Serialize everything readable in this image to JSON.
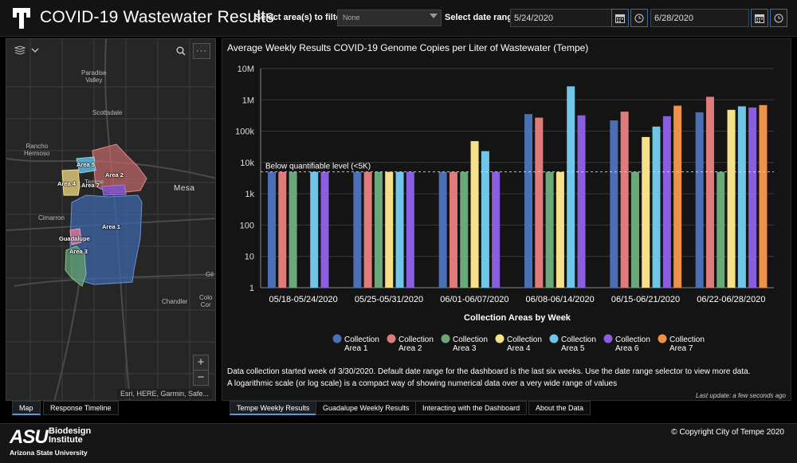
{
  "header": {
    "title": "COVID-19 Wastewater Results",
    "filter_label": "Select area(s) to filter",
    "area_select_value": "None",
    "date_label": "Select date range",
    "start_date": "5/24/2020",
    "end_date": "6/28/2020"
  },
  "map": {
    "places": {
      "paradise_valley": "Paradise\nValley",
      "scottsdale": "Scottsdale",
      "rancho_hermoso": "Rancho\nHermoso",
      "tempe": "Tempe",
      "mesa": "Mesa",
      "cimarron": "Cimarron",
      "gil": "Gil",
      "chandler": "Chandler",
      "colo": "Colo\nCor"
    },
    "areas": {
      "area1": "Area 1",
      "area2": "Area 2",
      "area3": "Area 3",
      "area4": "Area 4",
      "area5": "Area 5",
      "area7": "Area 7",
      "guadalupe": "Guadalupe"
    },
    "attribution": "Esri, HERE, Garmin, Safe...",
    "zoom_in": "+",
    "zoom_out": "−"
  },
  "chart_title": "Average Weekly Results COVID-19 Genome Copies per Liter of Wastewater (Tempe)",
  "chart_data": {
    "type": "bar",
    "y_scale": "log",
    "ylim": [
      1,
      10000000
    ],
    "yticks": [
      "1",
      "10",
      "100",
      "1k",
      "10k",
      "100k",
      "1M",
      "10M"
    ],
    "categories": [
      "05/18-05/24/2020",
      "05/25-05/31/2020",
      "06/01-06/07/2020",
      "06/08-06/14/2020",
      "06/15-06/21/2020",
      "06/22-06/28/2020"
    ],
    "xlabel": "Collection Areas by Week",
    "threshold": {
      "value": 5000,
      "label": "Below quantifiable level (<5K)"
    },
    "series": [
      {
        "name": "Collection Area 1",
        "color": "#4a6fb5",
        "values": [
          5000,
          5000,
          5000,
          350000,
          220000,
          400000
        ]
      },
      {
        "name": "Collection Area 2",
        "color": "#e07b7b",
        "values": [
          5000,
          5000,
          5000,
          270000,
          420000,
          1250000
        ]
      },
      {
        "name": "Collection Area 3",
        "color": "#6aa87a",
        "values": [
          5000,
          5000,
          5000,
          5000,
          5000,
          5000
        ]
      },
      {
        "name": "Collection Area 4",
        "color": "#f7e08a",
        "values": [
          null,
          5000,
          48000,
          5000,
          65000,
          480000
        ]
      },
      {
        "name": "Collection Area 5",
        "color": "#6fc6e8",
        "values": [
          5000,
          5000,
          23000,
          2700000,
          140000,
          620000
        ]
      },
      {
        "name": "Collection Area 6",
        "color": "#8a5ee0",
        "values": [
          5000,
          5000,
          5000,
          320000,
          300000,
          570000
        ]
      },
      {
        "name": "Collection Area 7",
        "color": "#f0914a",
        "values": [
          null,
          null,
          null,
          null,
          650000,
          680000
        ]
      }
    ]
  },
  "legend_lines": [
    [
      "Collection",
      "Area 1"
    ],
    [
      "Collection",
      "Area 2"
    ],
    [
      "Collection",
      "Area 3"
    ],
    [
      "Collection",
      "Area 4"
    ],
    [
      "Collection",
      "Area 5"
    ],
    [
      "Collection",
      "Area 6"
    ],
    [
      "Collection",
      "Area 7"
    ]
  ],
  "info": {
    "line1": "Data collection started week of 3/30/2020. Default date range for the dashboard is the last six weeks. Use the date range selector to view  more data.",
    "line2": "A logarithmic scale (or log scale) is a compact way of showing numerical data over a very wide range of values",
    "last_update": "Last update: a few seconds ago"
  },
  "tabs": {
    "map": "Map",
    "response_timeline": "Response Timeline",
    "tempe_weekly": "Tempe Weekly Results",
    "guadalupe_weekly": "Guadalupe Weekly Results",
    "interacting": "Interacting with the Dashboard",
    "about": "About the Data"
  },
  "footer": {
    "asu": "ASU",
    "biodesign": "Biodesign",
    "institute": "Institute",
    "university": "Arizona State University",
    "copyright": "© Copyright City of Tempe 2020"
  }
}
